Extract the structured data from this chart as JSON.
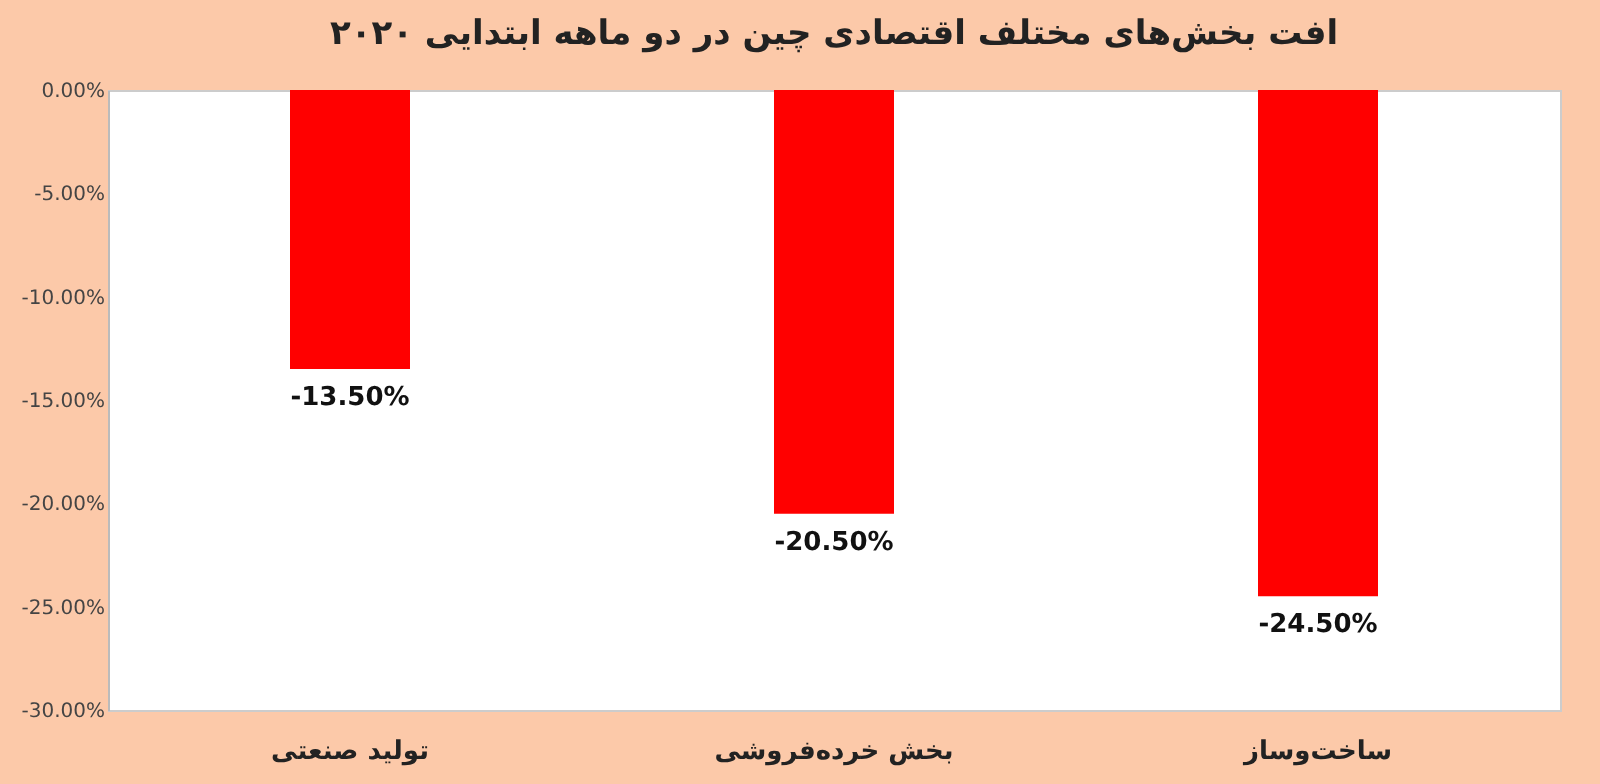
{
  "chart_data": {
    "type": "bar",
    "title": "افت بخش‌های مختلف اقتصادی چین در دو ماهه ابتدایی ۲۰۲۰",
    "categories": [
      "تولید صنعتی",
      "بخش خرده‌فروشی",
      "ساخت‌وساز"
    ],
    "values": [
      -13.5,
      -20.5,
      -24.5
    ],
    "value_labels": [
      "-13.50%",
      "-20.50%",
      "-24.50%"
    ],
    "color": "#ff0000",
    "ylim": [
      -30,
      0
    ],
    "yticks": [
      {
        "value": 0,
        "label": "0.00%"
      },
      {
        "value": -5,
        "label": "-5.00%"
      },
      {
        "value": -10,
        "label": "-10.00%"
      },
      {
        "value": -15,
        "label": "-15.00%"
      },
      {
        "value": -20,
        "label": "-20.00%"
      },
      {
        "value": -25,
        "label": "-25.00%"
      },
      {
        "value": -30,
        "label": "-30.00%"
      }
    ],
    "grid": false
  }
}
